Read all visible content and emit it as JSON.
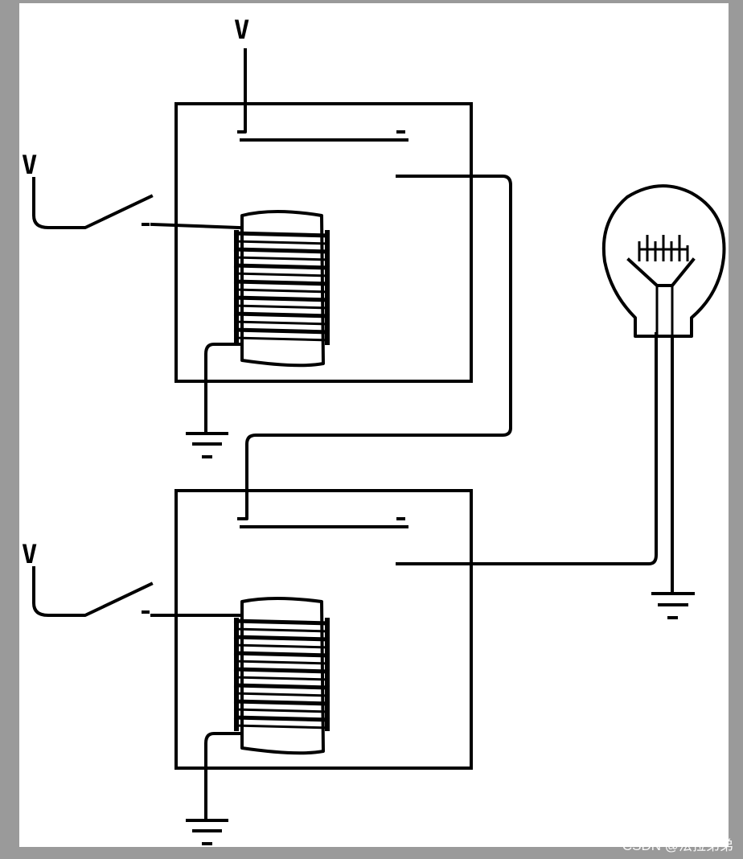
{
  "diagram": {
    "labels": {
      "top_input": "V",
      "relay1_switch_input": "V",
      "relay2_switch_input": "V"
    }
  },
  "watermark": "CSDN @法拉弟弟",
  "colors": {
    "ink": "#000000",
    "paper": "#ffffff",
    "frame": "#9a9a9a"
  }
}
